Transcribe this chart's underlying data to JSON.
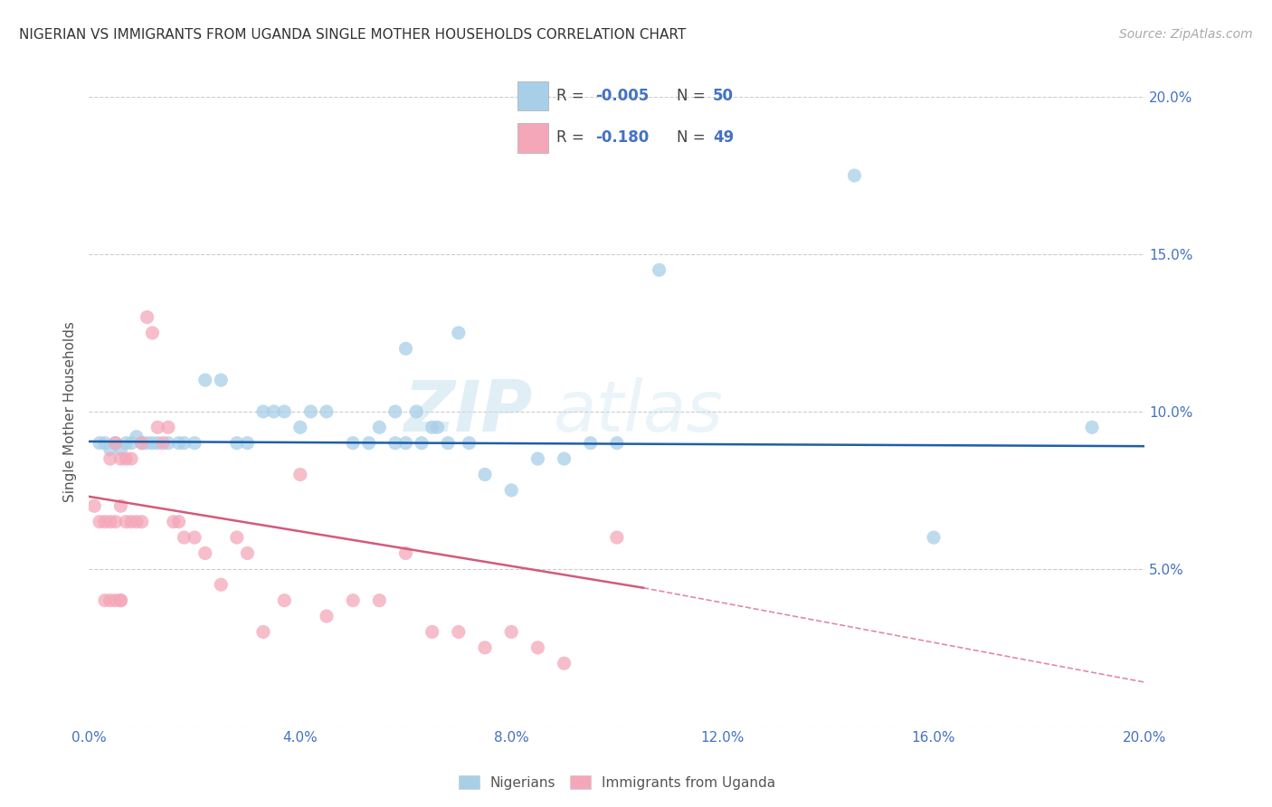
{
  "title": "NIGERIAN VS IMMIGRANTS FROM UGANDA SINGLE MOTHER HOUSEHOLDS CORRELATION CHART",
  "source": "Source: ZipAtlas.com",
  "ylabel": "Single Mother Households",
  "xlim": [
    0.0,
    0.2
  ],
  "ylim": [
    0.0,
    0.2
  ],
  "color_blue": "#a8cfe8",
  "color_pink": "#f4a7b9",
  "color_trend_blue": "#1f5fa6",
  "color_trend_pink": "#d45a7a",
  "watermark_zip": "ZIP",
  "watermark_atlas": "atlas",
  "blue_x": [
    0.002,
    0.003,
    0.004,
    0.005,
    0.006,
    0.007,
    0.008,
    0.009,
    0.01,
    0.011,
    0.012,
    0.013,
    0.015,
    0.017,
    0.018,
    0.02,
    0.022,
    0.025,
    0.028,
    0.03,
    0.033,
    0.035,
    0.037,
    0.04,
    0.042,
    0.045,
    0.05,
    0.053,
    0.055,
    0.058,
    0.06,
    0.063,
    0.065,
    0.068,
    0.075,
    0.08,
    0.085,
    0.09,
    0.095,
    0.06,
    0.07,
    0.1,
    0.108,
    0.145,
    0.16,
    0.19,
    0.058,
    0.062,
    0.066,
    0.072
  ],
  "blue_y": [
    0.09,
    0.09,
    0.088,
    0.09,
    0.088,
    0.09,
    0.09,
    0.092,
    0.09,
    0.09,
    0.09,
    0.09,
    0.09,
    0.09,
    0.09,
    0.09,
    0.11,
    0.11,
    0.09,
    0.09,
    0.1,
    0.1,
    0.1,
    0.095,
    0.1,
    0.1,
    0.09,
    0.09,
    0.095,
    0.09,
    0.09,
    0.09,
    0.095,
    0.09,
    0.08,
    0.075,
    0.085,
    0.085,
    0.09,
    0.12,
    0.125,
    0.09,
    0.145,
    0.175,
    0.06,
    0.095,
    0.1,
    0.1,
    0.095,
    0.09
  ],
  "pink_x": [
    0.001,
    0.002,
    0.003,
    0.004,
    0.004,
    0.005,
    0.005,
    0.006,
    0.006,
    0.007,
    0.007,
    0.008,
    0.008,
    0.009,
    0.01,
    0.01,
    0.011,
    0.012,
    0.013,
    0.014,
    0.015,
    0.016,
    0.017,
    0.018,
    0.02,
    0.022,
    0.025,
    0.028,
    0.03,
    0.033,
    0.037,
    0.04,
    0.045,
    0.05,
    0.055,
    0.06,
    0.065,
    0.07,
    0.075,
    0.08,
    0.085,
    0.09,
    0.1,
    0.003,
    0.004,
    0.005,
    0.006,
    0.006
  ],
  "pink_y": [
    0.07,
    0.065,
    0.065,
    0.065,
    0.085,
    0.065,
    0.09,
    0.07,
    0.085,
    0.065,
    0.085,
    0.065,
    0.085,
    0.065,
    0.065,
    0.09,
    0.13,
    0.125,
    0.095,
    0.09,
    0.095,
    0.065,
    0.065,
    0.06,
    0.06,
    0.055,
    0.045,
    0.06,
    0.055,
    0.03,
    0.04,
    0.08,
    0.035,
    0.04,
    0.04,
    0.055,
    0.03,
    0.03,
    0.025,
    0.03,
    0.025,
    0.02,
    0.06,
    0.04,
    0.04,
    0.04,
    0.04,
    0.04
  ],
  "blue_trend": [
    0.0,
    0.2,
    0.0905,
    0.089
  ],
  "pink_trend_solid": [
    0.0,
    0.105,
    0.073,
    0.044
  ],
  "pink_trend_dash": [
    0.105,
    0.2,
    0.044,
    0.014
  ]
}
